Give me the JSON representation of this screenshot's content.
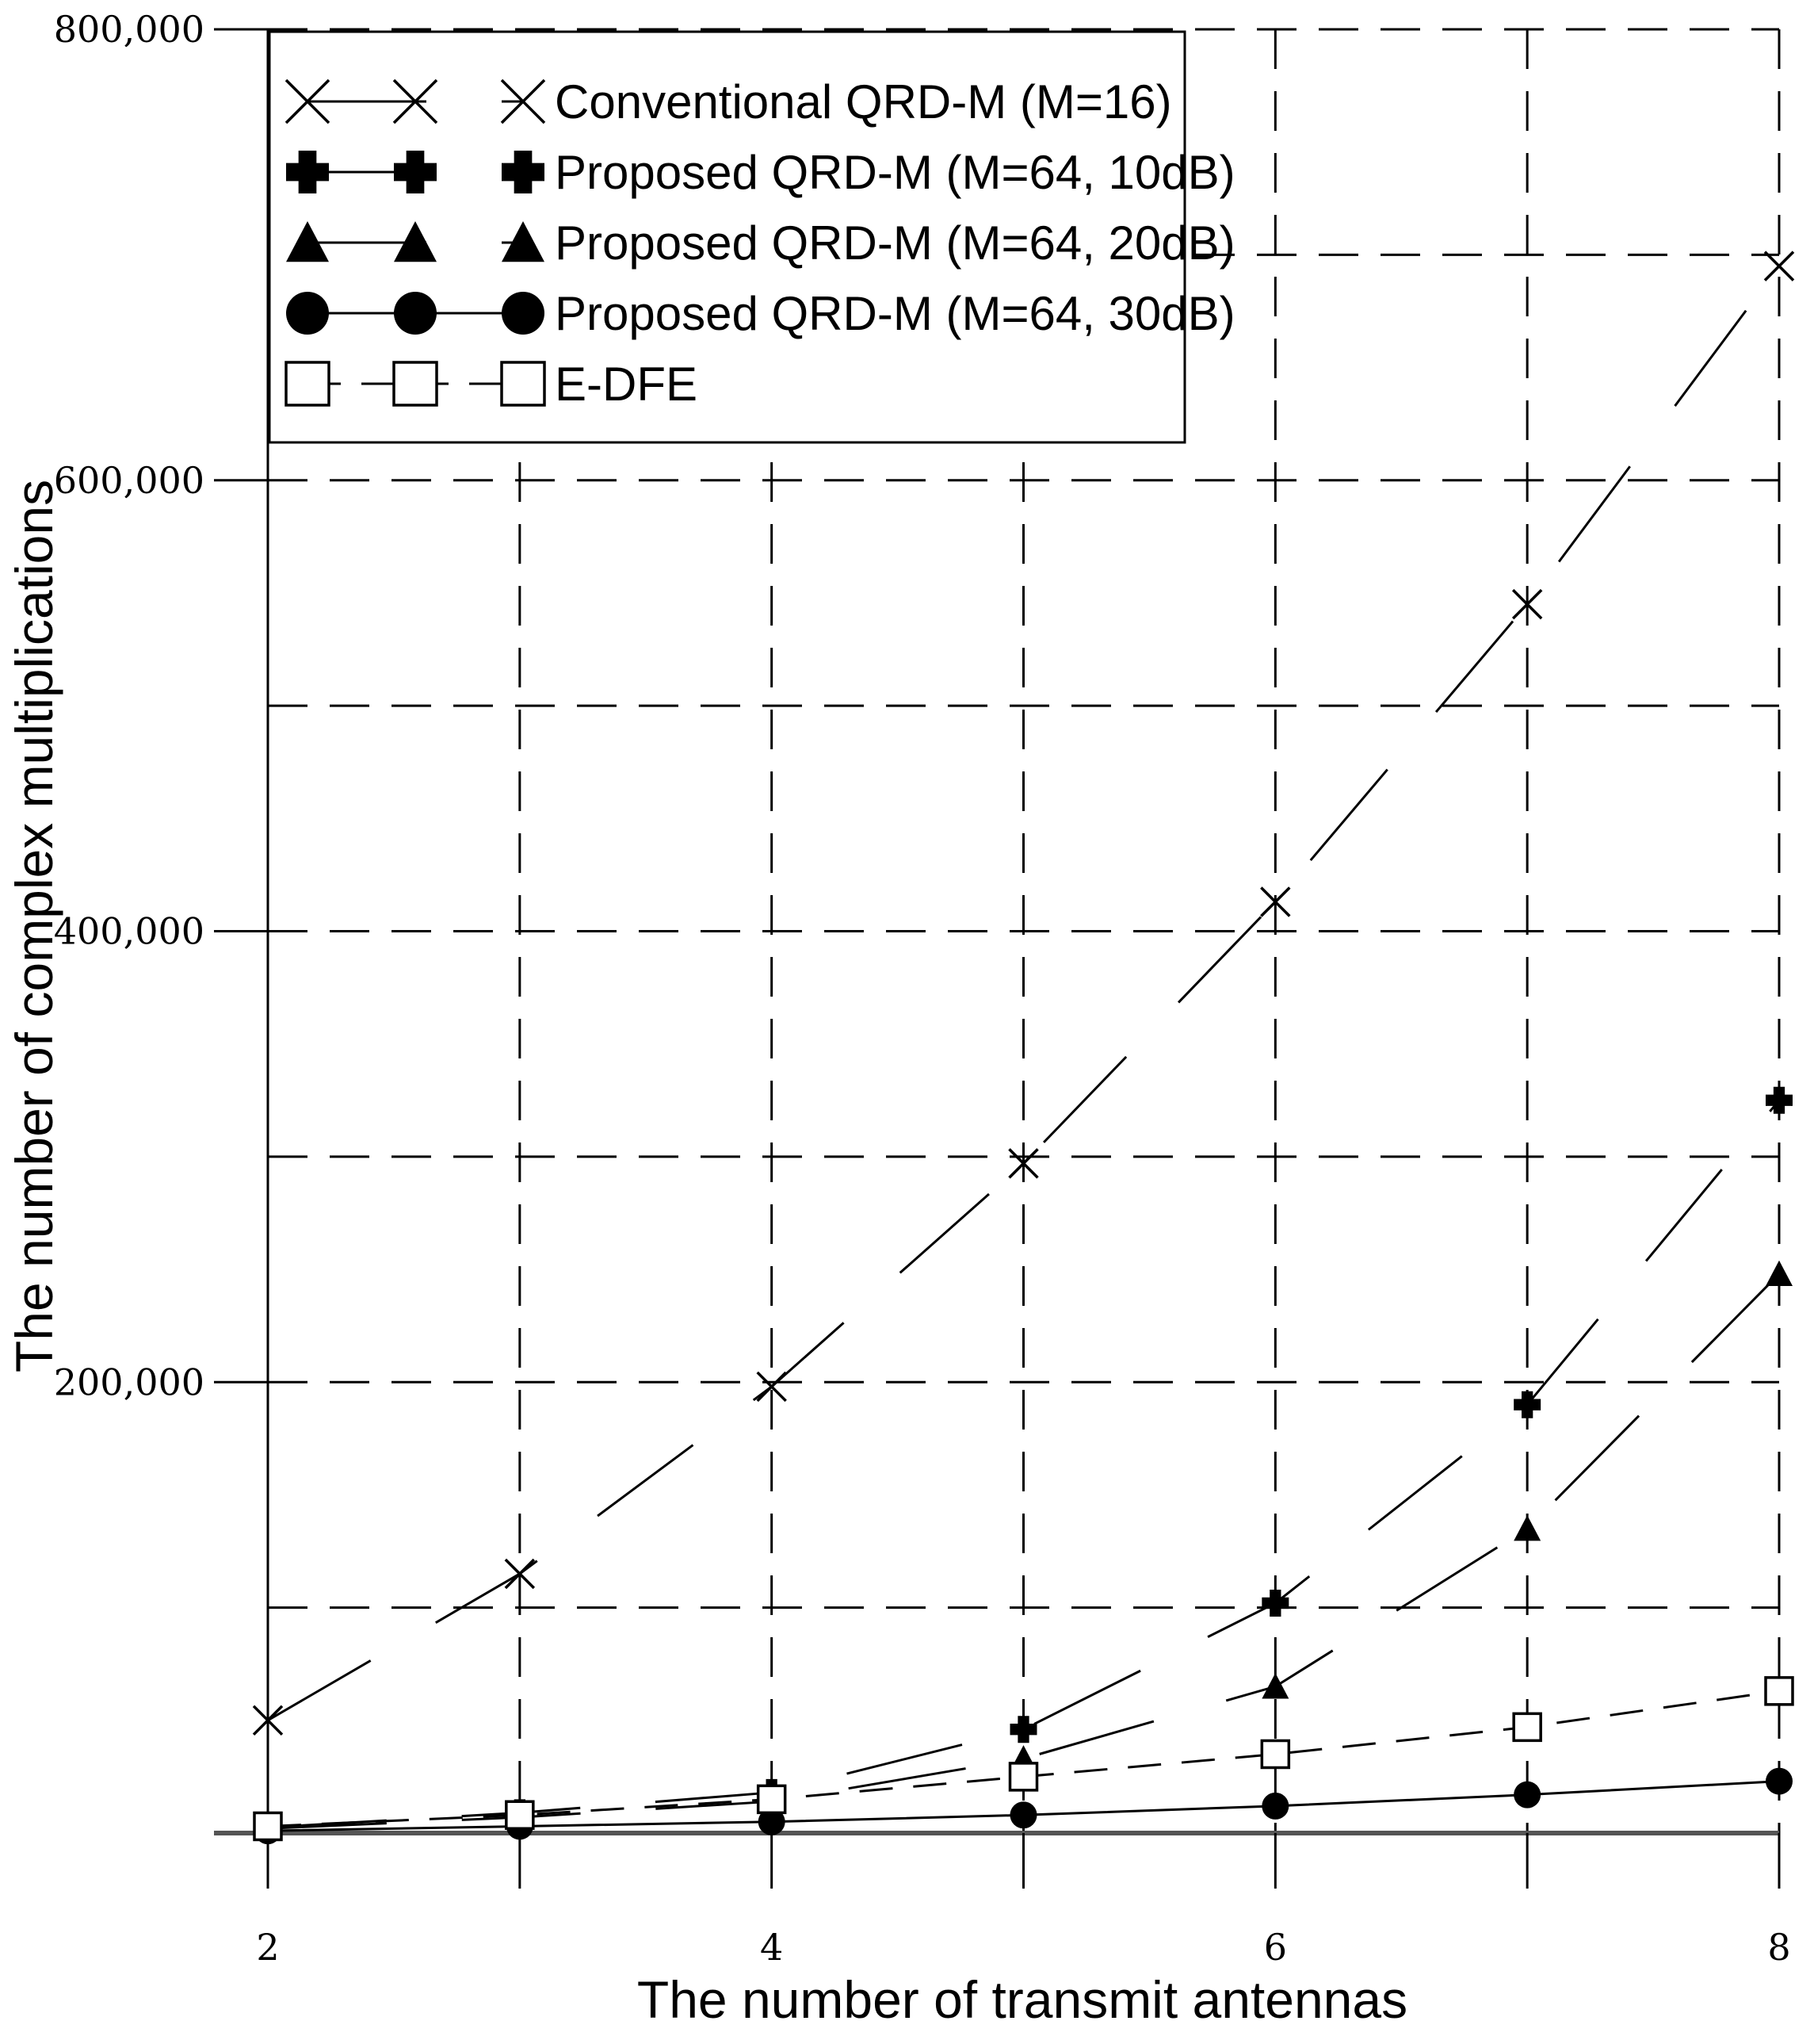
{
  "chart_data": {
    "type": "line",
    "xlabel": "The number of transmit antennas",
    "ylabel": "The number of complex multiplications",
    "x": [
      2,
      3,
      4,
      5,
      6,
      7,
      8
    ],
    "x_ticks": [
      "2",
      "4",
      "6",
      "8"
    ],
    "y_ticks": [
      "200,000",
      "400,000",
      "600,000",
      "800,000"
    ],
    "xlim": [
      2,
      8
    ],
    "ylim": [
      0,
      800000
    ],
    "grid": true,
    "legend_position": "top-left",
    "series": [
      {
        "name": "Conventional QRD-M (M=16)",
        "marker": "x",
        "line": "long-dash",
        "values": [
          50000,
          115000,
          198000,
          297000,
          413000,
          545000,
          695000
        ]
      },
      {
        "name": "Proposed QRD-M (M=64, 10dB)",
        "marker": "plus",
        "line": "long-dash",
        "values": [
          2500,
          9000,
          18000,
          46000,
          102000,
          190000,
          325000
        ]
      },
      {
        "name": "Proposed QRD-M (M=64, 20dB)",
        "marker": "triangle",
        "line": "long-dash",
        "values": [
          2000,
          7000,
          14000,
          33000,
          65000,
          135000,
          248000
        ]
      },
      {
        "name": "Proposed QRD-M (M=64, 30dB)",
        "marker": "circle",
        "line": "solid",
        "values": [
          1000,
          3000,
          5000,
          8000,
          12000,
          17000,
          23000
        ]
      },
      {
        "name": "E-DFE",
        "marker": "square",
        "line": "short-dash",
        "values": [
          3000,
          8000,
          15000,
          25000,
          35000,
          47000,
          63000
        ]
      }
    ]
  }
}
